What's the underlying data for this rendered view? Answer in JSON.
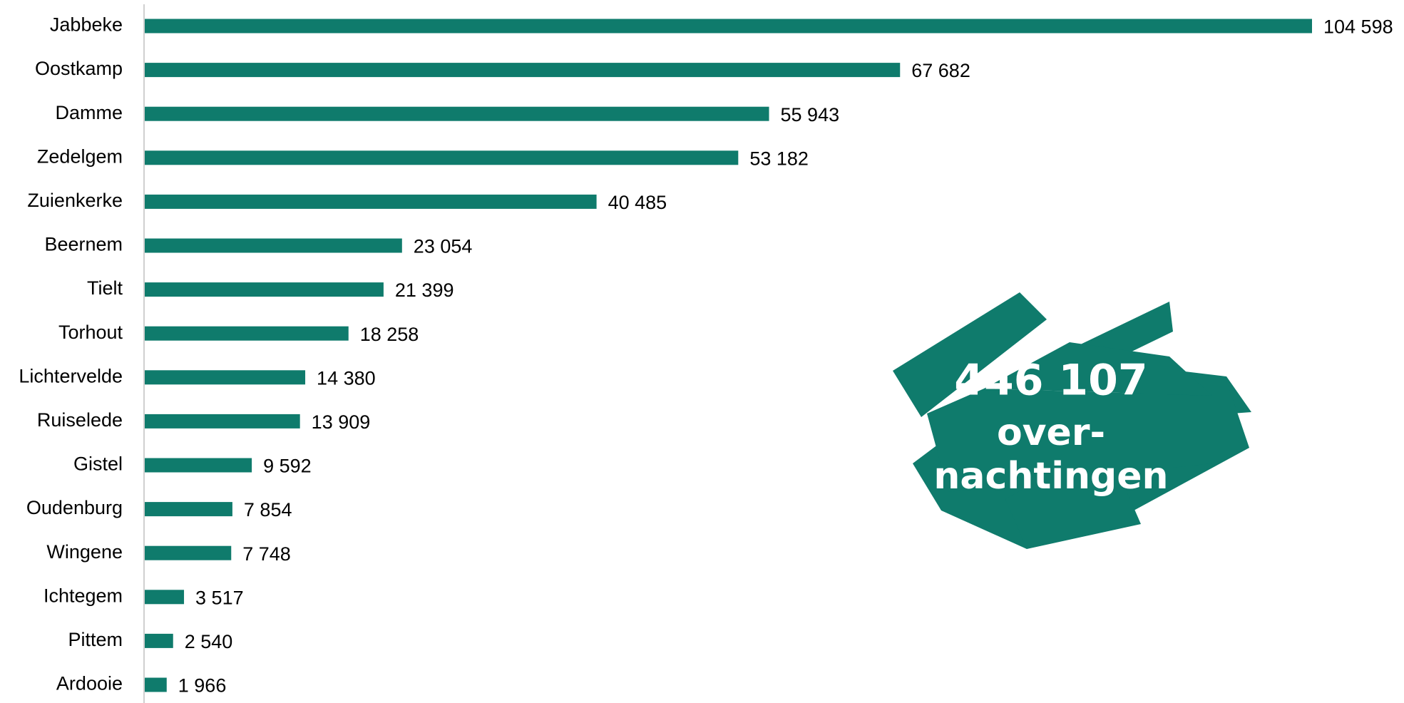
{
  "chart_data": {
    "type": "barh",
    "color": "#0f7b6c",
    "categories": [
      "Jabbeke",
      "Oostkamp",
      "Damme",
      "Zedelgem",
      "Zuienkerke",
      "Beernem",
      "Tielt",
      "Torhout",
      "Lichtervelde",
      "Ruiselede",
      "Gistel",
      "Oudenburg",
      "Wingene",
      "Ichtegem",
      "Pittem",
      "Ardooie"
    ],
    "values": [
      104598,
      67682,
      55943,
      53182,
      40485,
      23054,
      21399,
      18258,
      14380,
      13909,
      9592,
      7854,
      7748,
      3517,
      2540,
      1966
    ],
    "value_labels": [
      "104 598",
      "67 682",
      "55 943",
      "53 182",
      "40 485",
      "23 054",
      "21 399",
      "18 258",
      "14 380",
      "13 909",
      "9 592",
      "7 854",
      "7 748",
      "3 517",
      "2 540",
      "1 966"
    ],
    "annotations": [
      "446 107",
      "over-",
      "nachtingen"
    ]
  }
}
